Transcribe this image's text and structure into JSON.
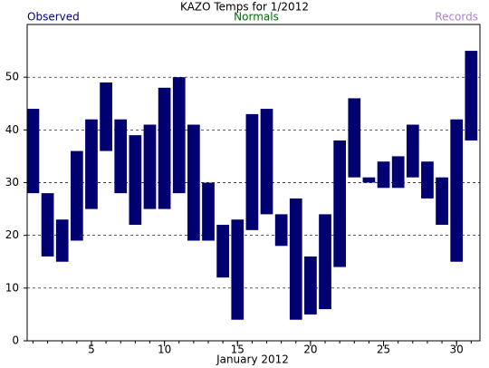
{
  "chart_data": {
    "type": "floating-bar",
    "title": "KAZO Temps for  1/2012",
    "x_label": "January 2012",
    "legend": [
      {
        "name": "Observed",
        "color": "#000080"
      },
      {
        "name": "Normals",
        "color": "#007000"
      },
      {
        "name": "Records",
        "color": "#b080d0"
      }
    ],
    "x": [
      1,
      2,
      3,
      4,
      5,
      6,
      7,
      8,
      9,
      10,
      11,
      12,
      13,
      14,
      15,
      16,
      17,
      18,
      19,
      20,
      21,
      22,
      23,
      24,
      25,
      26,
      27,
      28,
      29,
      30,
      31
    ],
    "series": [
      {
        "name": "Observed",
        "color": "#000070",
        "low": [
          28,
          16,
          15,
          19,
          25,
          36,
          28,
          22,
          25,
          25,
          28,
          19,
          19,
          12,
          4,
          21,
          24,
          18,
          4,
          5,
          6,
          14,
          31,
          30,
          29,
          29,
          31,
          27,
          22,
          15,
          38
        ],
        "high": [
          44,
          28,
          23,
          36,
          42,
          49,
          42,
          39,
          41,
          48,
          50,
          41,
          30,
          22,
          23,
          43,
          44,
          24,
          27,
          16,
          24,
          38,
          46,
          31,
          34,
          35,
          41,
          34,
          31,
          42,
          55
        ]
      }
    ],
    "xlim": [
      0.6,
      31.6
    ],
    "xticks": [
      5,
      10,
      15,
      20,
      25,
      30
    ],
    "ylim": [
      0,
      60
    ],
    "yticks": [
      0,
      10,
      20,
      30,
      40,
      50
    ],
    "grid": true
  }
}
